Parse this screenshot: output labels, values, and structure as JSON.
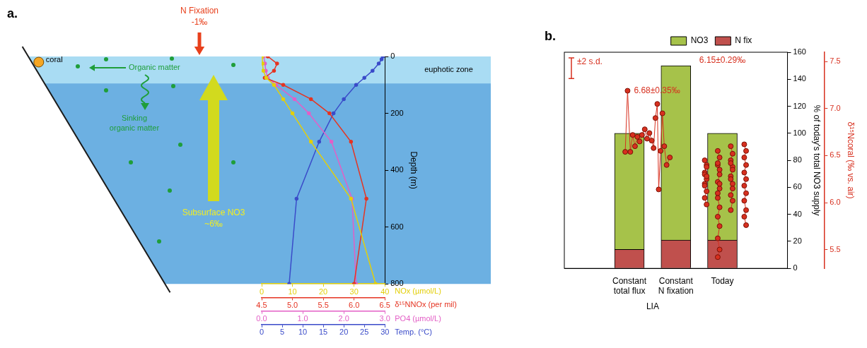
{
  "chart_data": [
    {
      "panel": "a.",
      "type": "line",
      "grid": false,
      "ylabel": "Depth (m)",
      "ylim": [
        800,
        0
      ],
      "yticks": [
        0,
        200,
        400,
        600,
        800
      ],
      "series": [
        {
          "xlabel": "NOx (µmol/L)",
          "color": "#e3cf0a",
          "marker": "circle",
          "xlim": [
            0,
            40
          ],
          "xticks": [
            0,
            10,
            20,
            30,
            40
          ],
          "x": [
            0.2,
            0.3,
            0.5,
            1.5,
            4,
            7,
            10,
            16,
            29,
            37
          ],
          "values": [
            0,
            25,
            50,
            75,
            100,
            150,
            200,
            300,
            500,
            800
          ]
        },
        {
          "xlabel": "δ¹⁵NNOx (per mil)",
          "color": "#e53422",
          "marker": "circle",
          "xlim": [
            4.5,
            6.5
          ],
          "xticks": [
            4.5,
            {
              "value": 5,
              "label": "5.0"
            },
            5.5,
            {
              "value": 6,
              "label": "6.0"
            },
            6.5
          ],
          "x": [
            4.6,
            4.75,
            4.7,
            4.55,
            4.85,
            5.3,
            5.6,
            5.95,
            6.2,
            6.0
          ],
          "values": [
            0,
            25,
            50,
            75,
            100,
            150,
            200,
            300,
            500,
            800
          ]
        },
        {
          "xlabel": "PO4 (µmol/L)",
          "color": "#e35fc6",
          "marker": "circle",
          "xlim": [
            0,
            3
          ],
          "xticks": [
            {
              "value": 0,
              "label": "0.0"
            },
            {
              "value": 1,
              "label": "1.0"
            },
            {
              "value": 2,
              "label": "2.0"
            },
            {
              "value": 3,
              "label": "3.0"
            }
          ],
          "x": [
            0.05,
            0.08,
            0.1,
            0.15,
            0.35,
            0.8,
            1.15,
            1.7,
            2.2,
            2.3
          ],
          "values": [
            0,
            25,
            50,
            75,
            100,
            150,
            200,
            300,
            500,
            800
          ]
        },
        {
          "xlabel": "Temp. (°C)",
          "color": "#3a4bc9",
          "marker": "circle",
          "xlim": [
            0,
            30
          ],
          "xticks": [
            0,
            5,
            10,
            15,
            20,
            25,
            30
          ],
          "x": [
            29.5,
            29.2,
            28.5,
            27,
            25,
            23,
            20,
            17.5,
            14,
            8.5,
            6.7
          ],
          "values": [
            0,
            10,
            25,
            50,
            75,
            100,
            150,
            200,
            300,
            500,
            800
          ]
        }
      ],
      "diagram": {
        "nitrogen_fixation": {
          "label": "N Fixation",
          "value": "-1‰"
        },
        "subsurface_nitrate": {
          "label": "Subsurface NO3",
          "value": "~6‰"
        },
        "coral": "coral",
        "organic_matter": "Organic matter",
        "sinking": "Sinking organic matter",
        "euphotic_zone": {
          "label": "euphotic zone",
          "depth": 95
        }
      }
    },
    {
      "panel": "b.",
      "type": "bar",
      "stacked": true,
      "legend": "top",
      "grid": false,
      "categories": [
        "Constant total flux",
        "Constant N fixation",
        "Today"
      ],
      "groups": [
        {
          "label": "LIA",
          "categories": [
            "Constant total flux",
            "Constant N fixation"
          ]
        }
      ],
      "ylabel": "% of today's total NO3 supply",
      "ylim": [
        0,
        160
      ],
      "yticks": [
        0,
        20,
        40,
        60,
        80,
        100,
        120,
        140,
        160
      ],
      "y2label": "δ¹⁵Ncoral (‰ vs. air)",
      "y2lim": [
        5.3,
        7.6
      ],
      "y2ticks": [
        5.5,
        {
          "value": 6,
          "label": "6.0"
        },
        6.5,
        {
          "value": 7,
          "label": "7.0"
        },
        7.5
      ],
      "series": [
        {
          "name": "N fix",
          "color": "#c0504d",
          "values": [
            14,
            21,
            21
          ]
        },
        {
          "name": "NO3",
          "color": "#a6c24a",
          "values": [
            86,
            129,
            79
          ]
        },
        {
          "type": "line",
          "axis": "y2",
          "color": "#d7301f",
          "marker": "circle",
          "x": [
            -0.09,
            -0.04,
            0.02,
            0.07,
            0.12,
            0.17,
            0.22,
            0.27,
            0.33,
            0.38,
            0.43,
            0.48,
            0.52,
            0.56,
            0.6,
            0.63,
            0.67,
            0.71,
            0.75,
            0.8,
            0.87
          ],
          "values": [
            6.54,
            7.19,
            6.54,
            6.72,
            6.6,
            6.7,
            6.65,
            6.72,
            6.78,
            6.68,
            6.74,
            6.66,
            6.58,
            6.9,
            7.05,
            6.14,
            6.55,
            6.95,
            6.6,
            6.4,
            6.48
          ]
        },
        {
          "type": "line",
          "axis": "y2",
          "color": "#d7301f",
          "marker": "circle",
          "x": [
            1.62,
            1.66,
            1.62,
            1.66,
            1.62,
            1.66,
            1.62,
            1.66,
            1.62,
            1.66,
            1.62,
            1.66
          ],
          "values": [
            6.45,
            6.4,
            6.32,
            6.38,
            6.3,
            6.25,
            6.2,
            6.28,
            6.18,
            6.12,
            6.05,
            5.98
          ]
        },
        {
          "type": "line",
          "axis": "y2",
          "color": "#d7301f",
          "marker": "circle",
          "x": [
            1.9,
            1.94,
            1.9,
            1.94,
            1.9,
            1.94,
            1.9,
            1.94,
            1.9,
            1.94,
            1.9,
            1.94,
            1.9,
            1.94,
            1.9,
            1.94,
            1.9
          ],
          "values": [
            6.55,
            6.48,
            6.4,
            6.35,
            6.42,
            6.3,
            6.22,
            6.15,
            6.1,
            6.2,
            6.05,
            5.95,
            5.85,
            5.75,
            5.62,
            5.5,
            5.42
          ]
        },
        {
          "type": "line",
          "axis": "y2",
          "color": "#d7301f",
          "marker": "circle",
          "x": [
            2.18,
            2.22,
            2.18,
            2.22,
            2.18,
            2.22,
            2.18,
            2.22,
            2.18,
            2.22,
            2.18,
            2.22,
            2.18
          ],
          "values": [
            6.6,
            6.52,
            6.45,
            6.38,
            6.42,
            6.35,
            6.28,
            6.2,
            6.25,
            6.15,
            6.08,
            6.02,
            5.92
          ]
        },
        {
          "type": "line",
          "axis": "y2",
          "color": "#d7301f",
          "marker": "circle",
          "x": [
            2.47,
            2.51,
            2.47,
            2.51,
            2.47,
            2.51,
            2.47,
            2.51,
            2.47,
            2.51,
            2.47,
            2.51
          ],
          "values": [
            6.62,
            6.55,
            6.48,
            6.4,
            6.32,
            6.25,
            6.18,
            6.1,
            6.02,
            5.92,
            5.85,
            5.76
          ]
        }
      ],
      "annotations": [
        {
          "text": "±2 s.d.",
          "length": 0.22
        },
        {
          "text": "6.68±0.35‰",
          "at": "LIA"
        },
        {
          "text": "6.15±0.29‰",
          "at": "Today"
        }
      ]
    }
  ]
}
